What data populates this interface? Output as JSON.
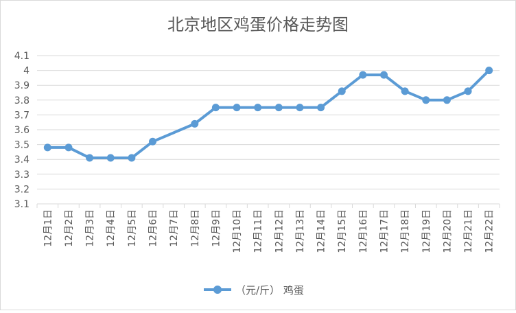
{
  "chart_data": {
    "type": "line",
    "title": "北京地区鸡蛋价格走势图",
    "categories": [
      "12月1日",
      "12月2日",
      "12月3日",
      "12月4日",
      "12月5日",
      "12月6日",
      "12月7日",
      "12月8日",
      "12月9日",
      "12月10日",
      "12月11日",
      "12月12日",
      "12月13日",
      "12月14日",
      "12月15日",
      "12月16日",
      "12月17日",
      "12月18日",
      "12月19日",
      "12月20日",
      "12月21日",
      "12月22日"
    ],
    "series": [
      {
        "name": "（元/斤） 鸡蛋",
        "values": [
          3.48,
          3.48,
          3.41,
          3.41,
          3.41,
          3.52,
          null,
          3.64,
          3.75,
          3.75,
          3.75,
          3.75,
          3.75,
          3.75,
          3.86,
          3.97,
          3.97,
          3.86,
          3.8,
          3.8,
          3.86,
          4.0
        ],
        "color": "#5b9bd5"
      }
    ],
    "yticks": [
      "3.1",
      "3.2",
      "3.3",
      "3.4",
      "3.5",
      "3.6",
      "3.7",
      "3.8",
      "3.9",
      "4",
      "4.1"
    ],
    "ylim": [
      3.1,
      4.1
    ],
    "grid": true,
    "legend": "bottom"
  }
}
